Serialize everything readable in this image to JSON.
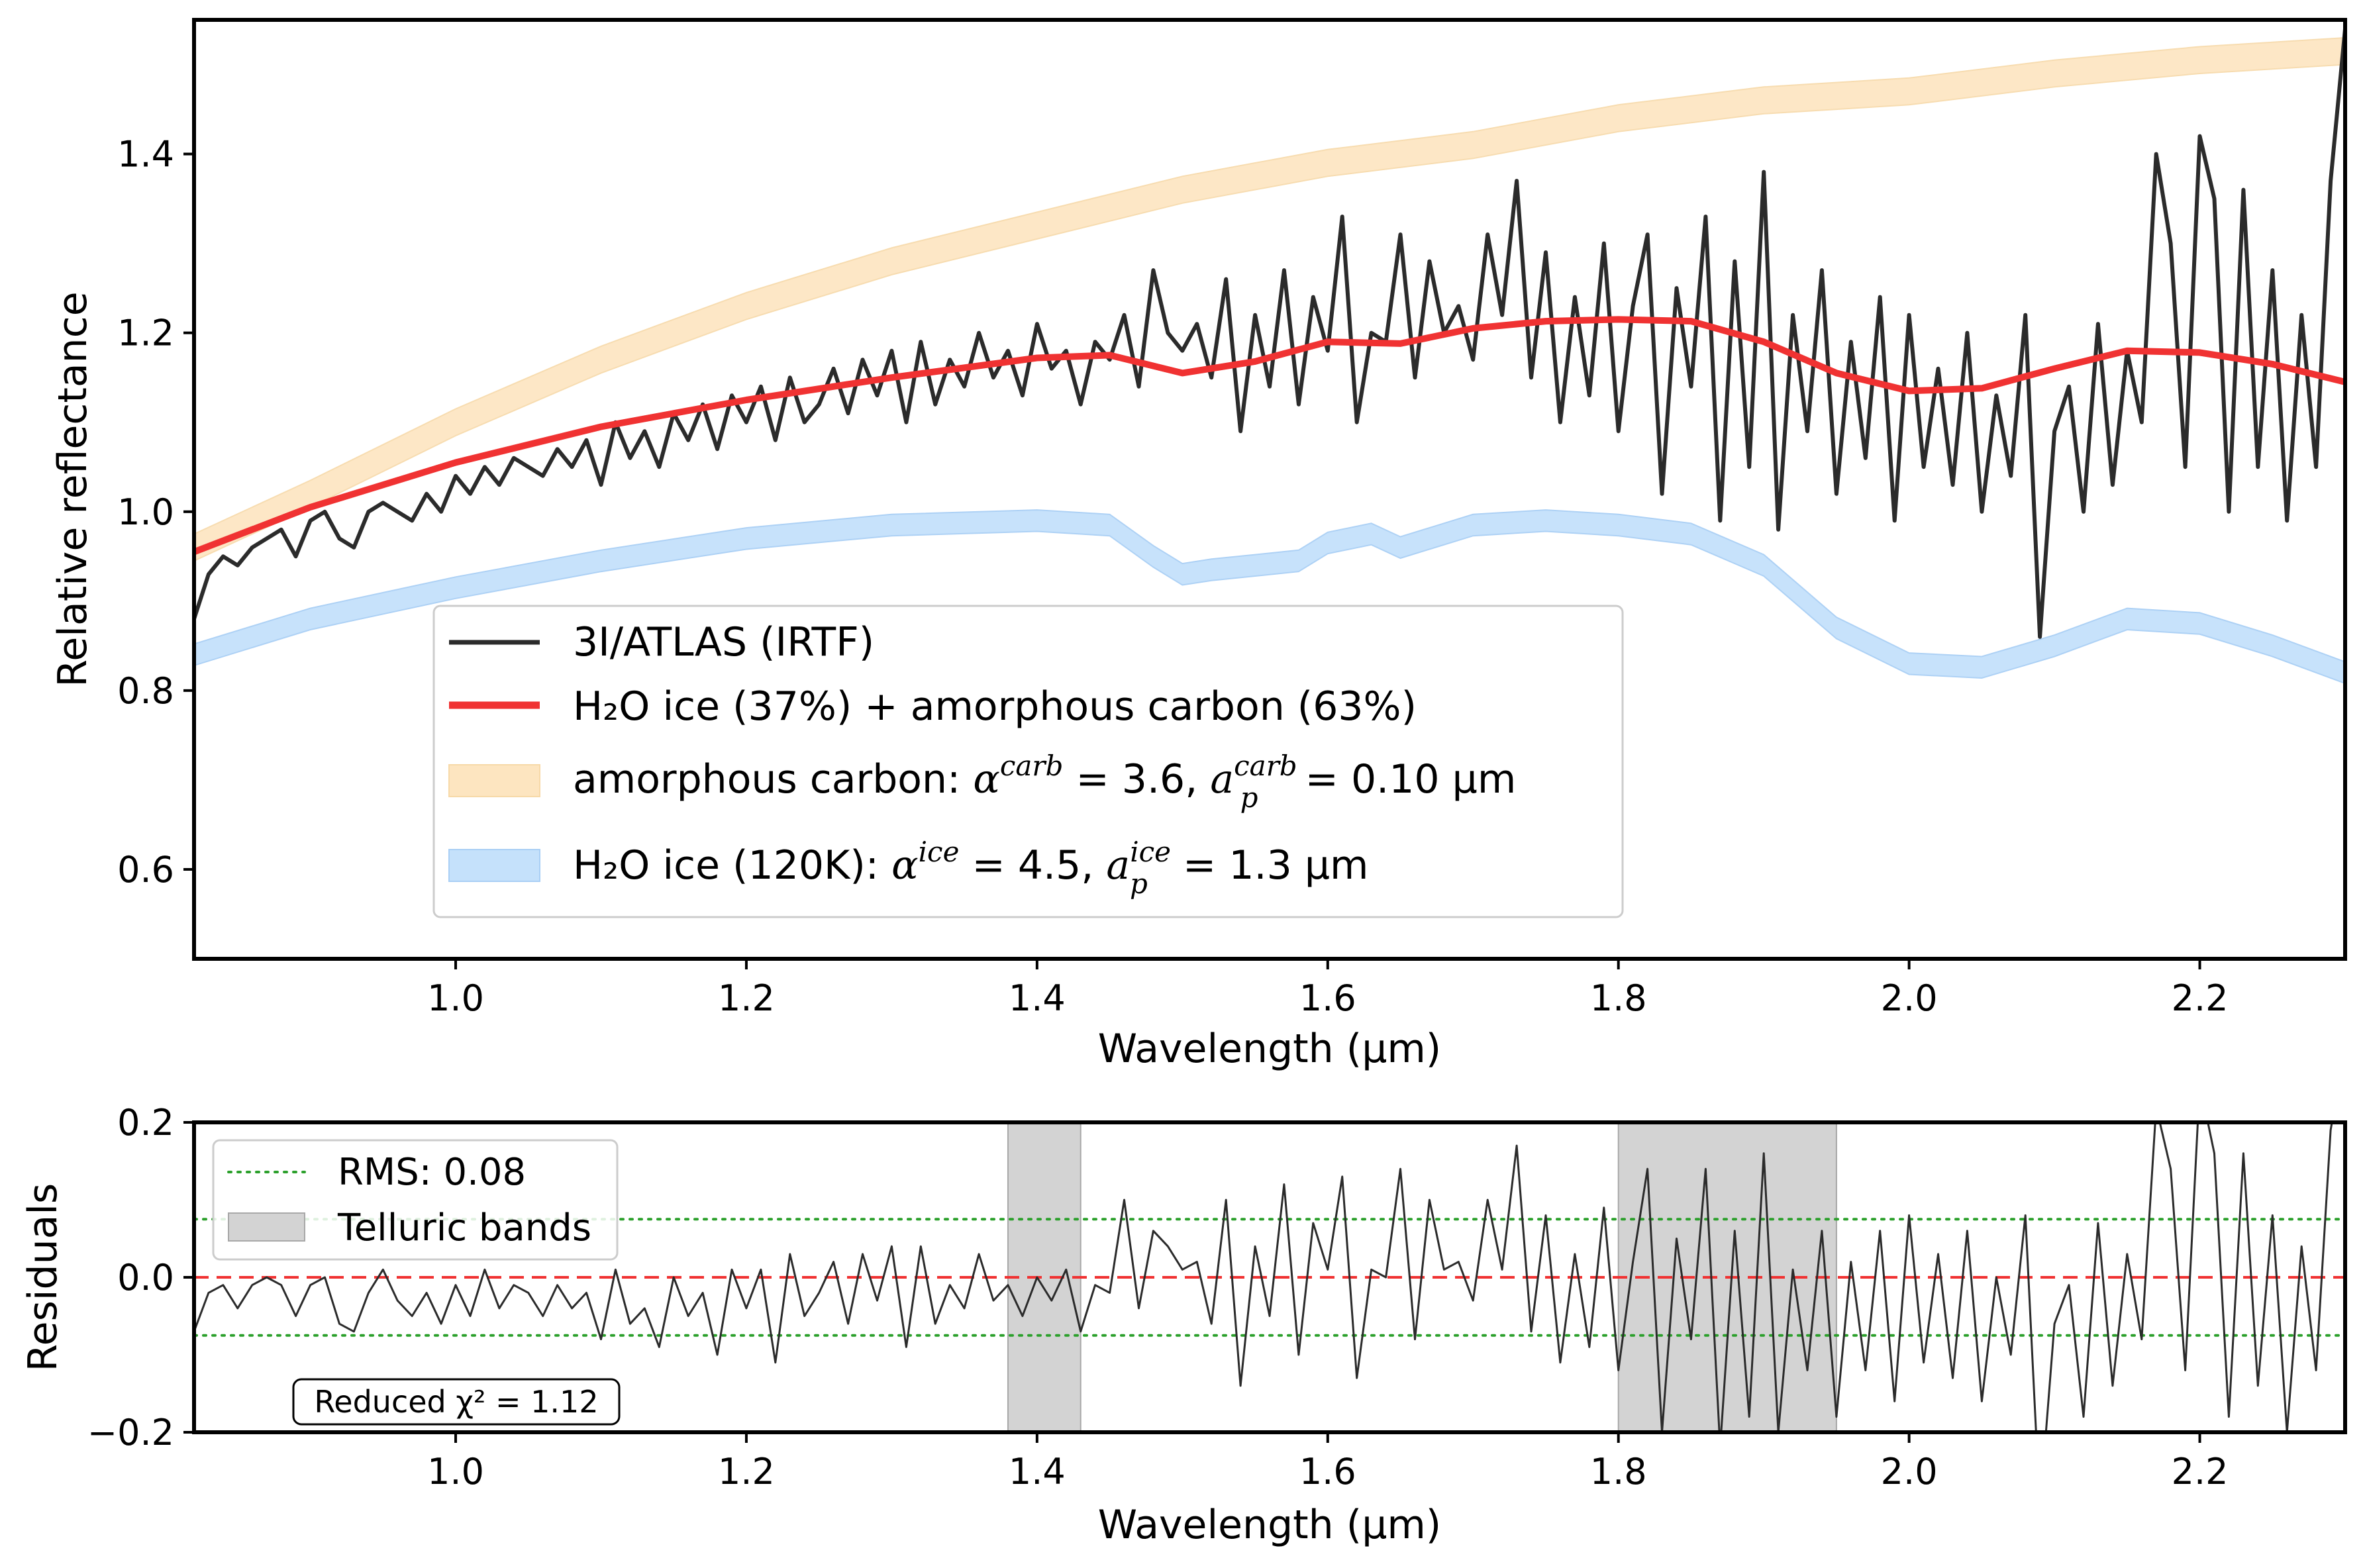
{
  "chart_data": [
    {
      "type": "line",
      "xlabel": "Wavelength (µm)",
      "ylabel": "Relative reflectance",
      "xlim": [
        0.82,
        2.3
      ],
      "ylim": [
        0.5,
        1.55
      ],
      "xticks": [
        1.0,
        1.2,
        1.4,
        1.6,
        1.8,
        2.0,
        2.2
      ],
      "xtick_labels": [
        "1.0",
        "1.2",
        "1.4",
        "1.6",
        "1.8",
        "2.0",
        "2.2"
      ],
      "yticks": [
        0.6,
        0.8,
        1.0,
        1.2,
        1.4
      ],
      "ytick_labels": [
        "0.6",
        "0.8",
        "1.0",
        "1.2",
        "1.4"
      ],
      "grid": false,
      "legend_position": "lower-center",
      "series": [
        {
          "name": "3I/ATLAS (IRTF)",
          "color": "#2b2b2b",
          "style": "noisy spectrum",
          "x": [
            0.82,
            0.83,
            0.84,
            0.85,
            0.86,
            0.87,
            0.88,
            0.89,
            0.9,
            0.91,
            0.92,
            0.93,
            0.94,
            0.95,
            0.96,
            0.97,
            0.98,
            0.99,
            1.0,
            1.01,
            1.02,
            1.03,
            1.04,
            1.05,
            1.06,
            1.07,
            1.08,
            1.09,
            1.1,
            1.11,
            1.12,
            1.13,
            1.14,
            1.15,
            1.16,
            1.17,
            1.18,
            1.19,
            1.2,
            1.21,
            1.22,
            1.23,
            1.24,
            1.25,
            1.26,
            1.27,
            1.28,
            1.29,
            1.3,
            1.31,
            1.32,
            1.33,
            1.34,
            1.35,
            1.36,
            1.37,
            1.38,
            1.39,
            1.4,
            1.41,
            1.42,
            1.43,
            1.44,
            1.45,
            1.46,
            1.47,
            1.48,
            1.49,
            1.5,
            1.51,
            1.52,
            1.53,
            1.54,
            1.55,
            1.56,
            1.57,
            1.58,
            1.59,
            1.6,
            1.61,
            1.62,
            1.63,
            1.64,
            1.65,
            1.66,
            1.67,
            1.68,
            1.69,
            1.7,
            1.71,
            1.72,
            1.73,
            1.74,
            1.75,
            1.76,
            1.77,
            1.78,
            1.79,
            1.8,
            1.81,
            1.82,
            1.83,
            1.84,
            1.85,
            1.86,
            1.87,
            1.88,
            1.89,
            1.9,
            1.91,
            1.92,
            1.93,
            1.94,
            1.95,
            1.96,
            1.97,
            1.98,
            1.99,
            2.0,
            2.01,
            2.02,
            2.03,
            2.04,
            2.05,
            2.06,
            2.07,
            2.08,
            2.09,
            2.1,
            2.11,
            2.12,
            2.13,
            2.14,
            2.15,
            2.16,
            2.17,
            2.18,
            2.19,
            2.2,
            2.21,
            2.22,
            2.23,
            2.24,
            2.25,
            2.26,
            2.27,
            2.28,
            2.29,
            2.3
          ],
          "y": [
            0.88,
            0.93,
            0.95,
            0.94,
            0.96,
            0.97,
            0.98,
            0.95,
            0.99,
            1.0,
            0.97,
            0.96,
            1.0,
            1.01,
            1.0,
            0.99,
            1.02,
            1.0,
            1.04,
            1.02,
            1.05,
            1.03,
            1.06,
            1.05,
            1.04,
            1.07,
            1.05,
            1.08,
            1.03,
            1.1,
            1.06,
            1.09,
            1.05,
            1.11,
            1.08,
            1.12,
            1.07,
            1.13,
            1.1,
            1.14,
            1.08,
            1.15,
            1.1,
            1.12,
            1.16,
            1.11,
            1.17,
            1.13,
            1.18,
            1.1,
            1.19,
            1.12,
            1.17,
            1.14,
            1.2,
            1.15,
            1.18,
            1.13,
            1.21,
            1.16,
            1.18,
            1.12,
            1.19,
            1.17,
            1.22,
            1.14,
            1.27,
            1.2,
            1.18,
            1.21,
            1.15,
            1.26,
            1.09,
            1.22,
            1.14,
            1.27,
            1.12,
            1.24,
            1.18,
            1.33,
            1.1,
            1.2,
            1.19,
            1.31,
            1.15,
            1.28,
            1.2,
            1.23,
            1.17,
            1.31,
            1.22,
            1.37,
            1.15,
            1.29,
            1.1,
            1.24,
            1.13,
            1.3,
            1.09,
            1.23,
            1.31,
            1.02,
            1.25,
            1.14,
            1.33,
            0.99,
            1.28,
            1.05,
            1.38,
            0.98,
            1.22,
            1.09,
            1.27,
            1.02,
            1.19,
            1.06,
            1.24,
            0.99,
            1.22,
            1.05,
            1.16,
            1.03,
            1.2,
            1.0,
            1.13,
            1.04,
            1.22,
            0.86,
            1.09,
            1.14,
            1.0,
            1.21,
            1.03,
            1.18,
            1.1,
            1.4,
            1.3,
            1.05,
            1.42,
            1.35,
            1.0,
            1.36,
            1.05,
            1.27,
            0.99,
            1.22,
            1.05,
            1.37,
            1.54
          ],
          "note": "x from 0.82 to 2.30 µm, step 0.01 (approximate digitization)"
        },
        {
          "name": "H₂O ice (37%) + amorphous carbon (63%)",
          "color": "#f03232",
          "x": [
            0.82,
            0.9,
            1.0,
            1.1,
            1.2,
            1.3,
            1.4,
            1.45,
            1.5,
            1.55,
            1.6,
            1.65,
            1.7,
            1.75,
            1.8,
            1.85,
            1.9,
            1.95,
            2.0,
            2.05,
            2.1,
            2.15,
            2.2,
            2.25,
            2.3
          ],
          "y": [
            0.955,
            1.005,
            1.055,
            1.095,
            1.125,
            1.15,
            1.172,
            1.175,
            1.155,
            1.168,
            1.19,
            1.188,
            1.205,
            1.213,
            1.215,
            1.213,
            1.19,
            1.155,
            1.135,
            1.138,
            1.16,
            1.18,
            1.178,
            1.165,
            1.145
          ]
        },
        {
          "name": "amorphous carbon: α^carb = 3.6, a_p^carb = 0.10 µm",
          "color": "#fde5c0",
          "style": "band",
          "x": [
            0.82,
            0.9,
            1.0,
            1.1,
            1.2,
            1.3,
            1.4,
            1.5,
            1.6,
            1.7,
            1.8,
            1.9,
            2.0,
            2.1,
            2.2,
            2.3
          ],
          "y": [
            0.96,
            1.02,
            1.1,
            1.17,
            1.23,
            1.28,
            1.32,
            1.36,
            1.39,
            1.41,
            1.44,
            1.46,
            1.47,
            1.49,
            1.505,
            1.515
          ],
          "half_width": 0.015
        },
        {
          "name": "H₂O ice (120K): α^ice = 4.5, a_p^ice = 1.3 µm",
          "color": "#c5e1fb",
          "style": "band",
          "x": [
            0.82,
            0.9,
            1.0,
            1.1,
            1.2,
            1.3,
            1.4,
            1.45,
            1.48,
            1.5,
            1.52,
            1.55,
            1.58,
            1.6,
            1.63,
            1.65,
            1.7,
            1.75,
            1.8,
            1.85,
            1.9,
            1.95,
            2.0,
            2.05,
            2.1,
            2.15,
            2.2,
            2.25,
            2.3
          ],
          "y": [
            0.84,
            0.88,
            0.915,
            0.945,
            0.97,
            0.985,
            0.99,
            0.985,
            0.95,
            0.93,
            0.935,
            0.94,
            0.945,
            0.965,
            0.975,
            0.96,
            0.985,
            0.99,
            0.985,
            0.975,
            0.94,
            0.87,
            0.83,
            0.826,
            0.85,
            0.88,
            0.875,
            0.85,
            0.82
          ],
          "half_width": 0.012
        }
      ]
    },
    {
      "type": "line",
      "xlabel": "Wavelength (µm)",
      "ylabel": "Residuals",
      "xlim": [
        0.82,
        2.3
      ],
      "ylim": [
        -0.2,
        0.2
      ],
      "xticks": [
        1.0,
        1.2,
        1.4,
        1.6,
        1.8,
        2.0,
        2.2
      ],
      "xtick_labels": [
        "1.0",
        "1.2",
        "1.4",
        "1.6",
        "1.8",
        "2.0",
        "2.2"
      ],
      "yticks": [
        -0.2,
        0.0,
        0.2
      ],
      "ytick_labels": [
        "−0.2",
        "0.0",
        "0.2"
      ],
      "legend_position": "upper-left",
      "rms_value": 0.075,
      "zero_line_color": "#f03232",
      "rms_color": "#2ca02c",
      "telluric_bands": [
        [
          1.38,
          1.43
        ],
        [
          1.8,
          1.95
        ]
      ],
      "legend_entries": [
        "RMS: 0.08",
        "Telluric bands"
      ],
      "annotation": "Reduced χ² = 1.12",
      "series": [
        {
          "name": "residuals",
          "color": "#2b2b2b",
          "x": [
            0.82,
            0.83,
            0.84,
            0.85,
            0.86,
            0.87,
            0.88,
            0.89,
            0.9,
            0.91,
            0.92,
            0.93,
            0.94,
            0.95,
            0.96,
            0.97,
            0.98,
            0.99,
            1.0,
            1.01,
            1.02,
            1.03,
            1.04,
            1.05,
            1.06,
            1.07,
            1.08,
            1.09,
            1.1,
            1.11,
            1.12,
            1.13,
            1.14,
            1.15,
            1.16,
            1.17,
            1.18,
            1.19,
            1.2,
            1.21,
            1.22,
            1.23,
            1.24,
            1.25,
            1.26,
            1.27,
            1.28,
            1.29,
            1.3,
            1.31,
            1.32,
            1.33,
            1.34,
            1.35,
            1.36,
            1.37,
            1.38,
            1.39,
            1.4,
            1.41,
            1.42,
            1.43,
            1.44,
            1.45,
            1.46,
            1.47,
            1.48,
            1.49,
            1.5,
            1.51,
            1.52,
            1.53,
            1.54,
            1.55,
            1.56,
            1.57,
            1.58,
            1.59,
            1.6,
            1.61,
            1.62,
            1.63,
            1.64,
            1.65,
            1.66,
            1.67,
            1.68,
            1.69,
            1.7,
            1.71,
            1.72,
            1.73,
            1.74,
            1.75,
            1.76,
            1.77,
            1.78,
            1.79,
            1.8,
            1.81,
            1.82,
            1.83,
            1.84,
            1.85,
            1.86,
            1.87,
            1.88,
            1.89,
            1.9,
            1.91,
            1.92,
            1.93,
            1.94,
            1.95,
            1.96,
            1.97,
            1.98,
            1.99,
            2.0,
            2.01,
            2.02,
            2.03,
            2.04,
            2.05,
            2.06,
            2.07,
            2.08,
            2.09,
            2.1,
            2.11,
            2.12,
            2.13,
            2.14,
            2.15,
            2.16,
            2.17,
            2.18,
            2.19,
            2.2,
            2.21,
            2.22,
            2.23,
            2.24,
            2.25,
            2.26,
            2.27,
            2.28,
            2.29,
            2.3
          ],
          "y": [
            -0.07,
            -0.02,
            -0.01,
            -0.04,
            -0.01,
            0.0,
            -0.01,
            -0.05,
            -0.01,
            0.0,
            -0.06,
            -0.07,
            -0.02,
            0.01,
            -0.03,
            -0.05,
            -0.02,
            -0.06,
            -0.01,
            -0.05,
            0.01,
            -0.04,
            -0.01,
            -0.02,
            -0.05,
            -0.01,
            -0.04,
            -0.02,
            -0.08,
            0.01,
            -0.06,
            -0.04,
            -0.09,
            0.0,
            -0.05,
            -0.02,
            -0.1,
            0.01,
            -0.04,
            0.01,
            -0.11,
            0.03,
            -0.05,
            -0.02,
            0.02,
            -0.06,
            0.03,
            -0.03,
            0.04,
            -0.09,
            0.04,
            -0.06,
            -0.01,
            -0.04,
            0.03,
            -0.03,
            -0.01,
            -0.05,
            0.0,
            -0.03,
            0.01,
            -0.07,
            -0.01,
            -0.02,
            0.1,
            -0.04,
            0.06,
            0.04,
            0.01,
            0.02,
            -0.06,
            0.1,
            -0.14,
            0.04,
            -0.05,
            0.12,
            -0.1,
            0.07,
            0.01,
            0.13,
            -0.13,
            0.01,
            0.0,
            0.14,
            -0.08,
            0.1,
            0.01,
            0.02,
            -0.03,
            0.1,
            0.01,
            0.17,
            -0.07,
            0.08,
            -0.11,
            0.03,
            -0.09,
            0.09,
            -0.12,
            0.02,
            0.14,
            -0.2,
            0.05,
            -0.08,
            0.14,
            -0.22,
            0.06,
            -0.18,
            0.16,
            -0.2,
            0.01,
            -0.12,
            0.06,
            -0.18,
            0.02,
            -0.12,
            0.06,
            -0.16,
            0.08,
            -0.11,
            0.03,
            -0.13,
            0.06,
            -0.16,
            0.0,
            -0.1,
            0.08,
            -0.3,
            -0.06,
            -0.01,
            -0.18,
            0.07,
            -0.14,
            0.03,
            -0.08,
            0.22,
            0.14,
            -0.12,
            0.25,
            0.16,
            -0.18,
            0.16,
            -0.14,
            0.08,
            -0.2,
            0.04,
            -0.12,
            0.19,
            0.3
          ],
          "note": "x from 0.82 to 2.30 µm, step 0.01 (approximate digitization; clipped at ylim)"
        }
      ]
    }
  ]
}
